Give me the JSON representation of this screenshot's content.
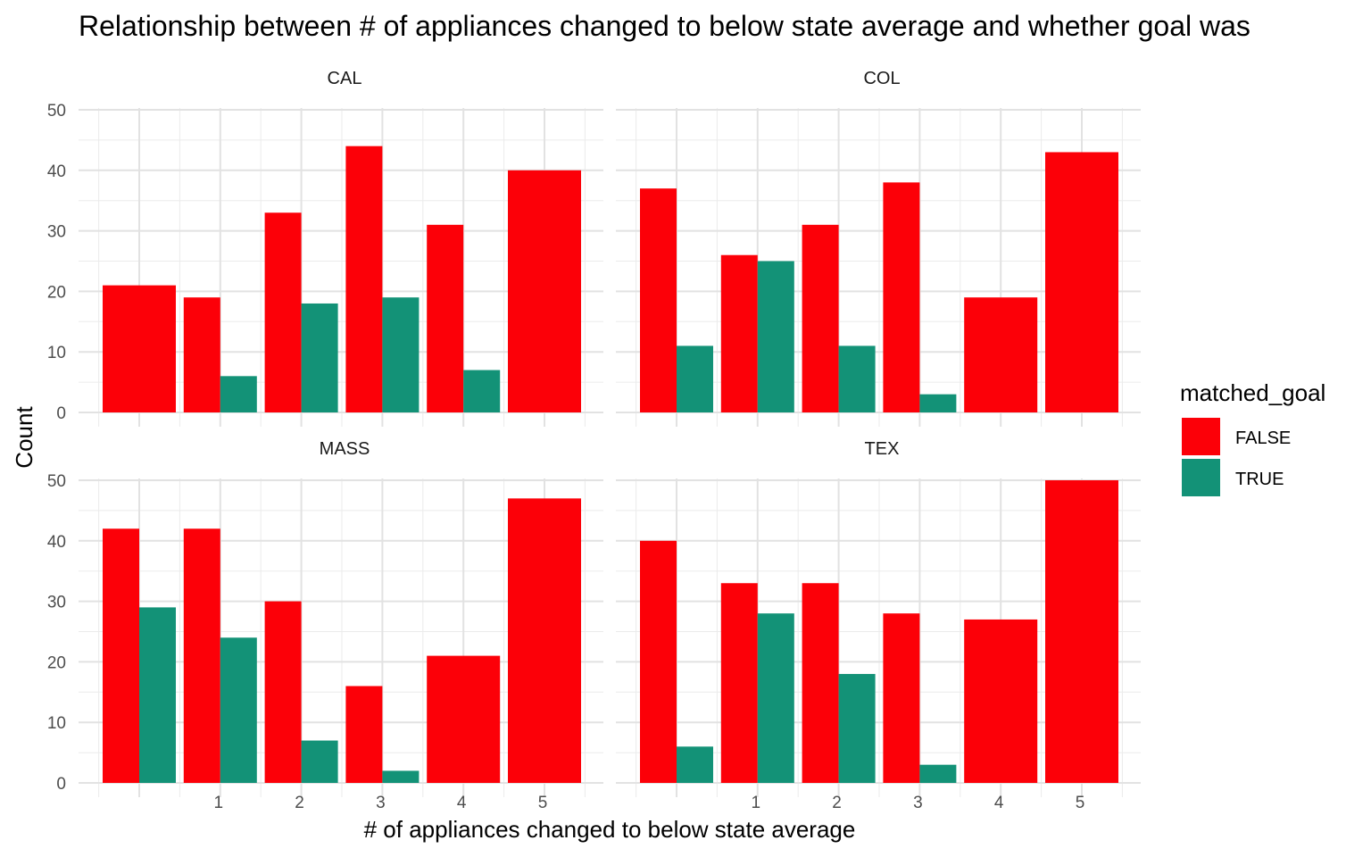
{
  "chart_data": {
    "type": "bar",
    "title": "Relationship between # of appliances changed to below state average and whether goal was",
    "xlabel": "# of appliances changed to below state average",
    "ylabel": "Count",
    "x_ticks": [
      1,
      2,
      3,
      4,
      5
    ],
    "ylim": [
      0,
      50
    ],
    "y_ticks": [
      0,
      10,
      20,
      30,
      40,
      50
    ],
    "grid": true,
    "legend": {
      "title": "matched_goal",
      "position": "right",
      "entries": [
        {
          "label": "FALSE",
          "color": "#FC0008"
        },
        {
          "label": "TRUE",
          "color": "#139277"
        }
      ]
    },
    "facets": [
      {
        "label": "CAL",
        "false_values": [
          21,
          19,
          33,
          44,
          31,
          40
        ],
        "true_values": [
          null,
          6,
          18,
          19,
          7,
          null
        ]
      },
      {
        "label": "COL",
        "false_values": [
          37,
          26,
          31,
          38,
          19,
          43
        ],
        "true_values": [
          11,
          25,
          11,
          3,
          null,
          null
        ]
      },
      {
        "label": "MASS",
        "false_values": [
          42,
          42,
          30,
          16,
          21,
          47
        ],
        "true_values": [
          29,
          24,
          7,
          2,
          null,
          null
        ]
      },
      {
        "label": "TEX",
        "false_values": [
          40,
          33,
          33,
          28,
          27,
          50
        ],
        "true_values": [
          6,
          28,
          18,
          3,
          null,
          null
        ]
      }
    ]
  }
}
